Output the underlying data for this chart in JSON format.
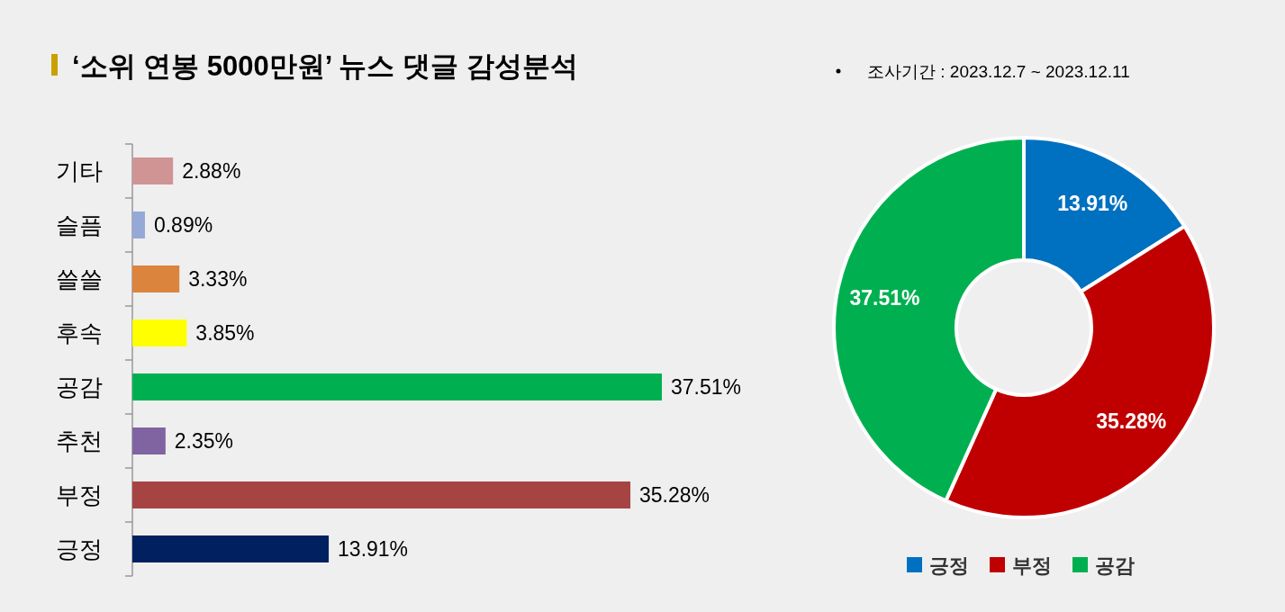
{
  "chart_data": [
    {
      "type": "bar",
      "orientation": "horizontal",
      "title": "‘소위 연봉 5000만원’ 뉴스 댓글 감성분석",
      "annotations": [
        "조사기간 : 2023.12.7 ~ 2023.12.11"
      ],
      "categories": [
        "기타",
        "슬픔",
        "쓸쓸",
        "후속",
        "공감",
        "추천",
        "부정",
        "긍정"
      ],
      "values": [
        2.88,
        0.89,
        3.33,
        3.85,
        37.51,
        2.35,
        35.28,
        13.91
      ],
      "colors": [
        "#d09494",
        "#95a9d6",
        "#db843d",
        "#ffff00",
        "#00b050",
        "#8064a2",
        "#a64444",
        "#002060"
      ],
      "value_labels": [
        "2.88%",
        "0.89%",
        "3.33%",
        "3.85%",
        "37.51%",
        "2.35%",
        "35.28%",
        "13.91%"
      ],
      "tick_labels": "y",
      "grid": false,
      "legend": false
    },
    {
      "type": "donut",
      "categories": [
        "긍정",
        "부정",
        "공감"
      ],
      "values": [
        13.91,
        35.28,
        37.51
      ],
      "colors": [
        "#0070c0",
        "#c00000",
        "#00b050"
      ],
      "value_labels": [
        "13.91%",
        "35.28%",
        "37.51%"
      ],
      "legend": "bottom"
    }
  ]
}
